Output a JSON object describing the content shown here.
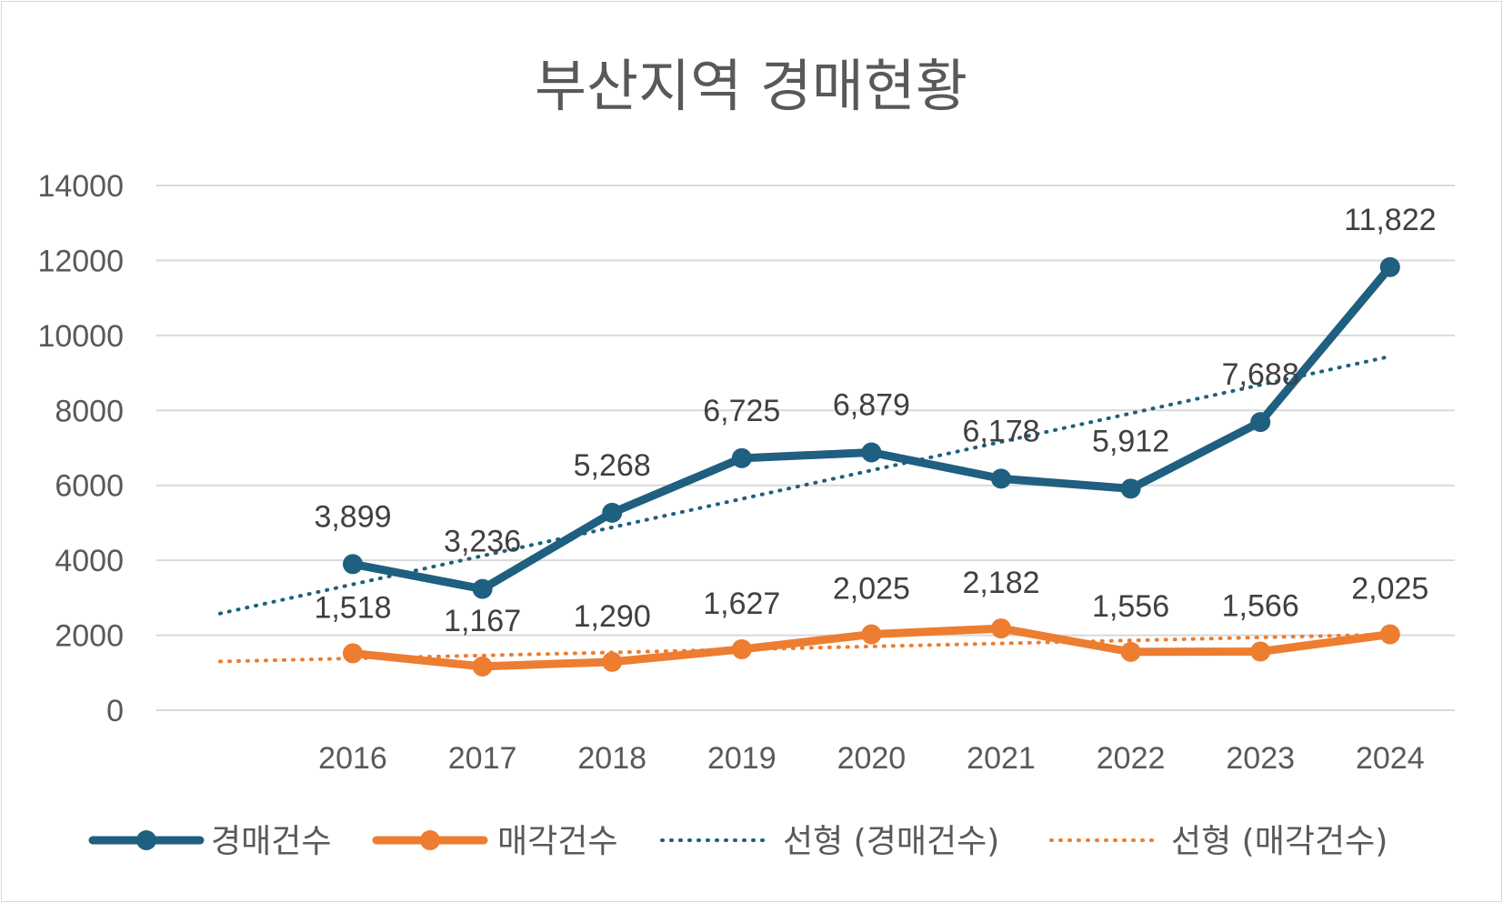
{
  "chart_data": {
    "type": "line",
    "title": "부산지역 경매현황",
    "categories": [
      "2016",
      "2017",
      "2018",
      "2019",
      "2020",
      "2021",
      "2022",
      "2023",
      "2024"
    ],
    "ylim": [
      0,
      14000
    ],
    "yticks": [
      0,
      2000,
      4000,
      6000,
      8000,
      10000,
      12000,
      14000
    ],
    "grid": true,
    "legend_position": "bottom",
    "series": [
      {
        "name": "경매건수",
        "color": "#1f5f7f",
        "values": [
          3899,
          3236,
          5268,
          6725,
          6879,
          6178,
          5912,
          7688,
          11822
        ],
        "labels": [
          "3,899",
          "3,236",
          "5,268",
          "6,725",
          "6,879",
          "6,178",
          "5,912",
          "7,688",
          "11,822"
        ]
      },
      {
        "name": "매각건수",
        "color": "#ed7d31",
        "values": [
          1518,
          1167,
          1290,
          1627,
          2025,
          2182,
          1556,
          1566,
          2025
        ],
        "labels": [
          "1,518",
          "1,167",
          "1,290",
          "1,627",
          "2,025",
          "2,182",
          "1,556",
          "1,566",
          "2,025"
        ]
      }
    ],
    "trendlines": [
      {
        "name": "선형 (경매건수)",
        "color": "#1f5f7f",
        "start": 2580,
        "end": 9420
      },
      {
        "name": "선형 (매각건수)",
        "color": "#ed7d31",
        "start": 1300,
        "end": 2020
      }
    ]
  }
}
